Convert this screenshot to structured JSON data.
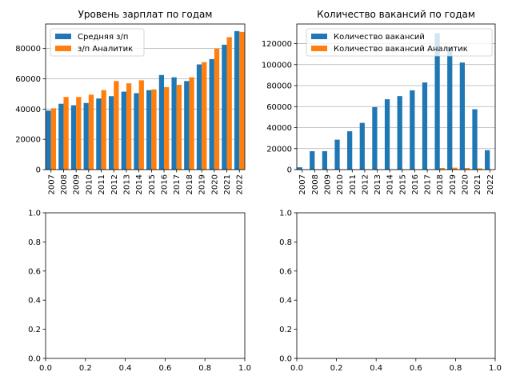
{
  "figure": {
    "layout": "2x2 subplots"
  },
  "chart_data": [
    {
      "type": "bar",
      "title": "Уровень зарплат по годам",
      "categories": [
        "2007",
        "2008",
        "2009",
        "2010",
        "2011",
        "2012",
        "2013",
        "2014",
        "2015",
        "2016",
        "2017",
        "2018",
        "2019",
        "2020",
        "2021",
        "2022"
      ],
      "series": [
        {
          "name": "Средняя з/п",
          "color": "#1f77b4",
          "values": [
            39000,
            43500,
            42500,
            44000,
            47000,
            48500,
            51500,
            50500,
            52500,
            62500,
            61000,
            58500,
            69500,
            73000,
            82500,
            91500
          ]
        },
        {
          "name": "з/п Аналитик",
          "color": "#ff7f0e",
          "values": [
            40500,
            48000,
            48000,
            49500,
            52500,
            58500,
            57000,
            59000,
            53000,
            54500,
            56000,
            61000,
            71000,
            80000,
            87500,
            91000
          ]
        }
      ],
      "yticks": [
        0,
        20000,
        40000,
        60000,
        80000
      ],
      "ylim": [
        0,
        96200
      ],
      "grid": "y",
      "legend": "top-left",
      "xtick_rotation": 90
    },
    {
      "type": "bar",
      "title": "Количество вакансий по годам",
      "categories": [
        "2007",
        "2008",
        "2009",
        "2010",
        "2011",
        "2012",
        "2013",
        "2014",
        "2015",
        "2016",
        "2017",
        "2018",
        "2019",
        "2020",
        "2021",
        "2022"
      ],
      "series": [
        {
          "name": "Количество вакансий",
          "color": "#1f77b4",
          "values": [
            2200,
            17500,
            17500,
            28500,
            36500,
            44500,
            59500,
            67000,
            70000,
            75500,
            83000,
            130000,
            117000,
            102000,
            57500,
            18500
          ]
        },
        {
          "name": "Количество вакансий Аналитик",
          "color": "#ff7f0e",
          "values": [
            0,
            0,
            0,
            0,
            0,
            0,
            0,
            0,
            0,
            0,
            0,
            1500,
            1800,
            1500,
            1200,
            0
          ]
        }
      ],
      "yticks": [
        0,
        20000,
        40000,
        60000,
        80000,
        100000,
        120000
      ],
      "ylim": [
        0,
        138700
      ],
      "grid": "y",
      "legend": "top-center",
      "xtick_rotation": 90
    },
    {
      "type": "bar",
      "title": "",
      "categories": [],
      "series": [],
      "xticks": [
        "0.0",
        "0.2",
        "0.4",
        "0.6",
        "0.8",
        "1.0"
      ],
      "yticks": [
        "0.0",
        "0.2",
        "0.4",
        "0.6",
        "0.8",
        "1.0"
      ],
      "xlim": [
        0,
        1
      ],
      "ylim": [
        0,
        1
      ],
      "grid": "none"
    },
    {
      "type": "bar",
      "title": "",
      "categories": [],
      "series": [],
      "xticks": [
        "0.0",
        "0.2",
        "0.4",
        "0.6",
        "0.8",
        "1.0"
      ],
      "yticks": [
        "0.0",
        "0.2",
        "0.4",
        "0.6",
        "0.8",
        "1.0"
      ],
      "xlim": [
        0,
        1
      ],
      "ylim": [
        0,
        1
      ],
      "grid": "none"
    }
  ]
}
